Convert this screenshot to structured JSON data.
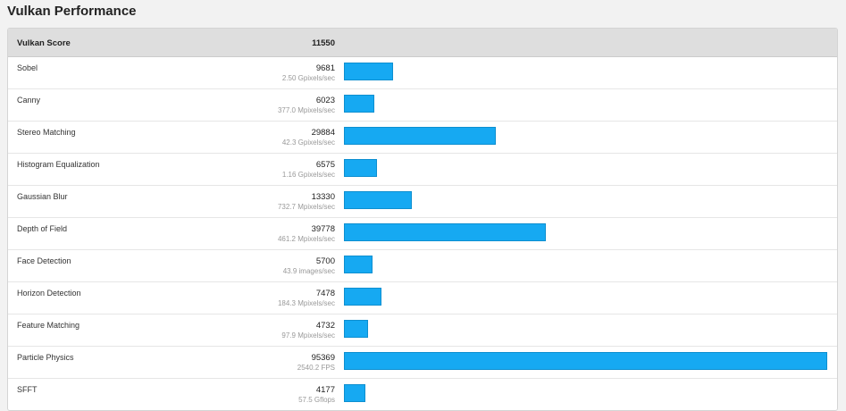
{
  "title": "Vulkan Performance",
  "header": {
    "label": "Vulkan Score",
    "score": "11550"
  },
  "bar_color": "#16a9f2",
  "max_score": 95369,
  "rows": [
    {
      "name": "Sobel",
      "score": 9681,
      "sub": "2.50 Gpixels/sec"
    },
    {
      "name": "Canny",
      "score": 6023,
      "sub": "377.0 Mpixels/sec"
    },
    {
      "name": "Stereo Matching",
      "score": 29884,
      "sub": "42.3 Gpixels/sec"
    },
    {
      "name": "Histogram Equalization",
      "score": 6575,
      "sub": "1.16 Gpixels/sec"
    },
    {
      "name": "Gaussian Blur",
      "score": 13330,
      "sub": "732.7 Mpixels/sec"
    },
    {
      "name": "Depth of Field",
      "score": 39778,
      "sub": "461.2 Mpixels/sec"
    },
    {
      "name": "Face Detection",
      "score": 5700,
      "sub": "43.9 images/sec"
    },
    {
      "name": "Horizon Detection",
      "score": 7478,
      "sub": "184.3 Mpixels/sec"
    },
    {
      "name": "Feature Matching",
      "score": 4732,
      "sub": "97.9 Mpixels/sec"
    },
    {
      "name": "Particle Physics",
      "score": 95369,
      "sub": "2540.2 FPS"
    },
    {
      "name": "SFFT",
      "score": 4177,
      "sub": "57.5 Gflops"
    }
  ]
}
